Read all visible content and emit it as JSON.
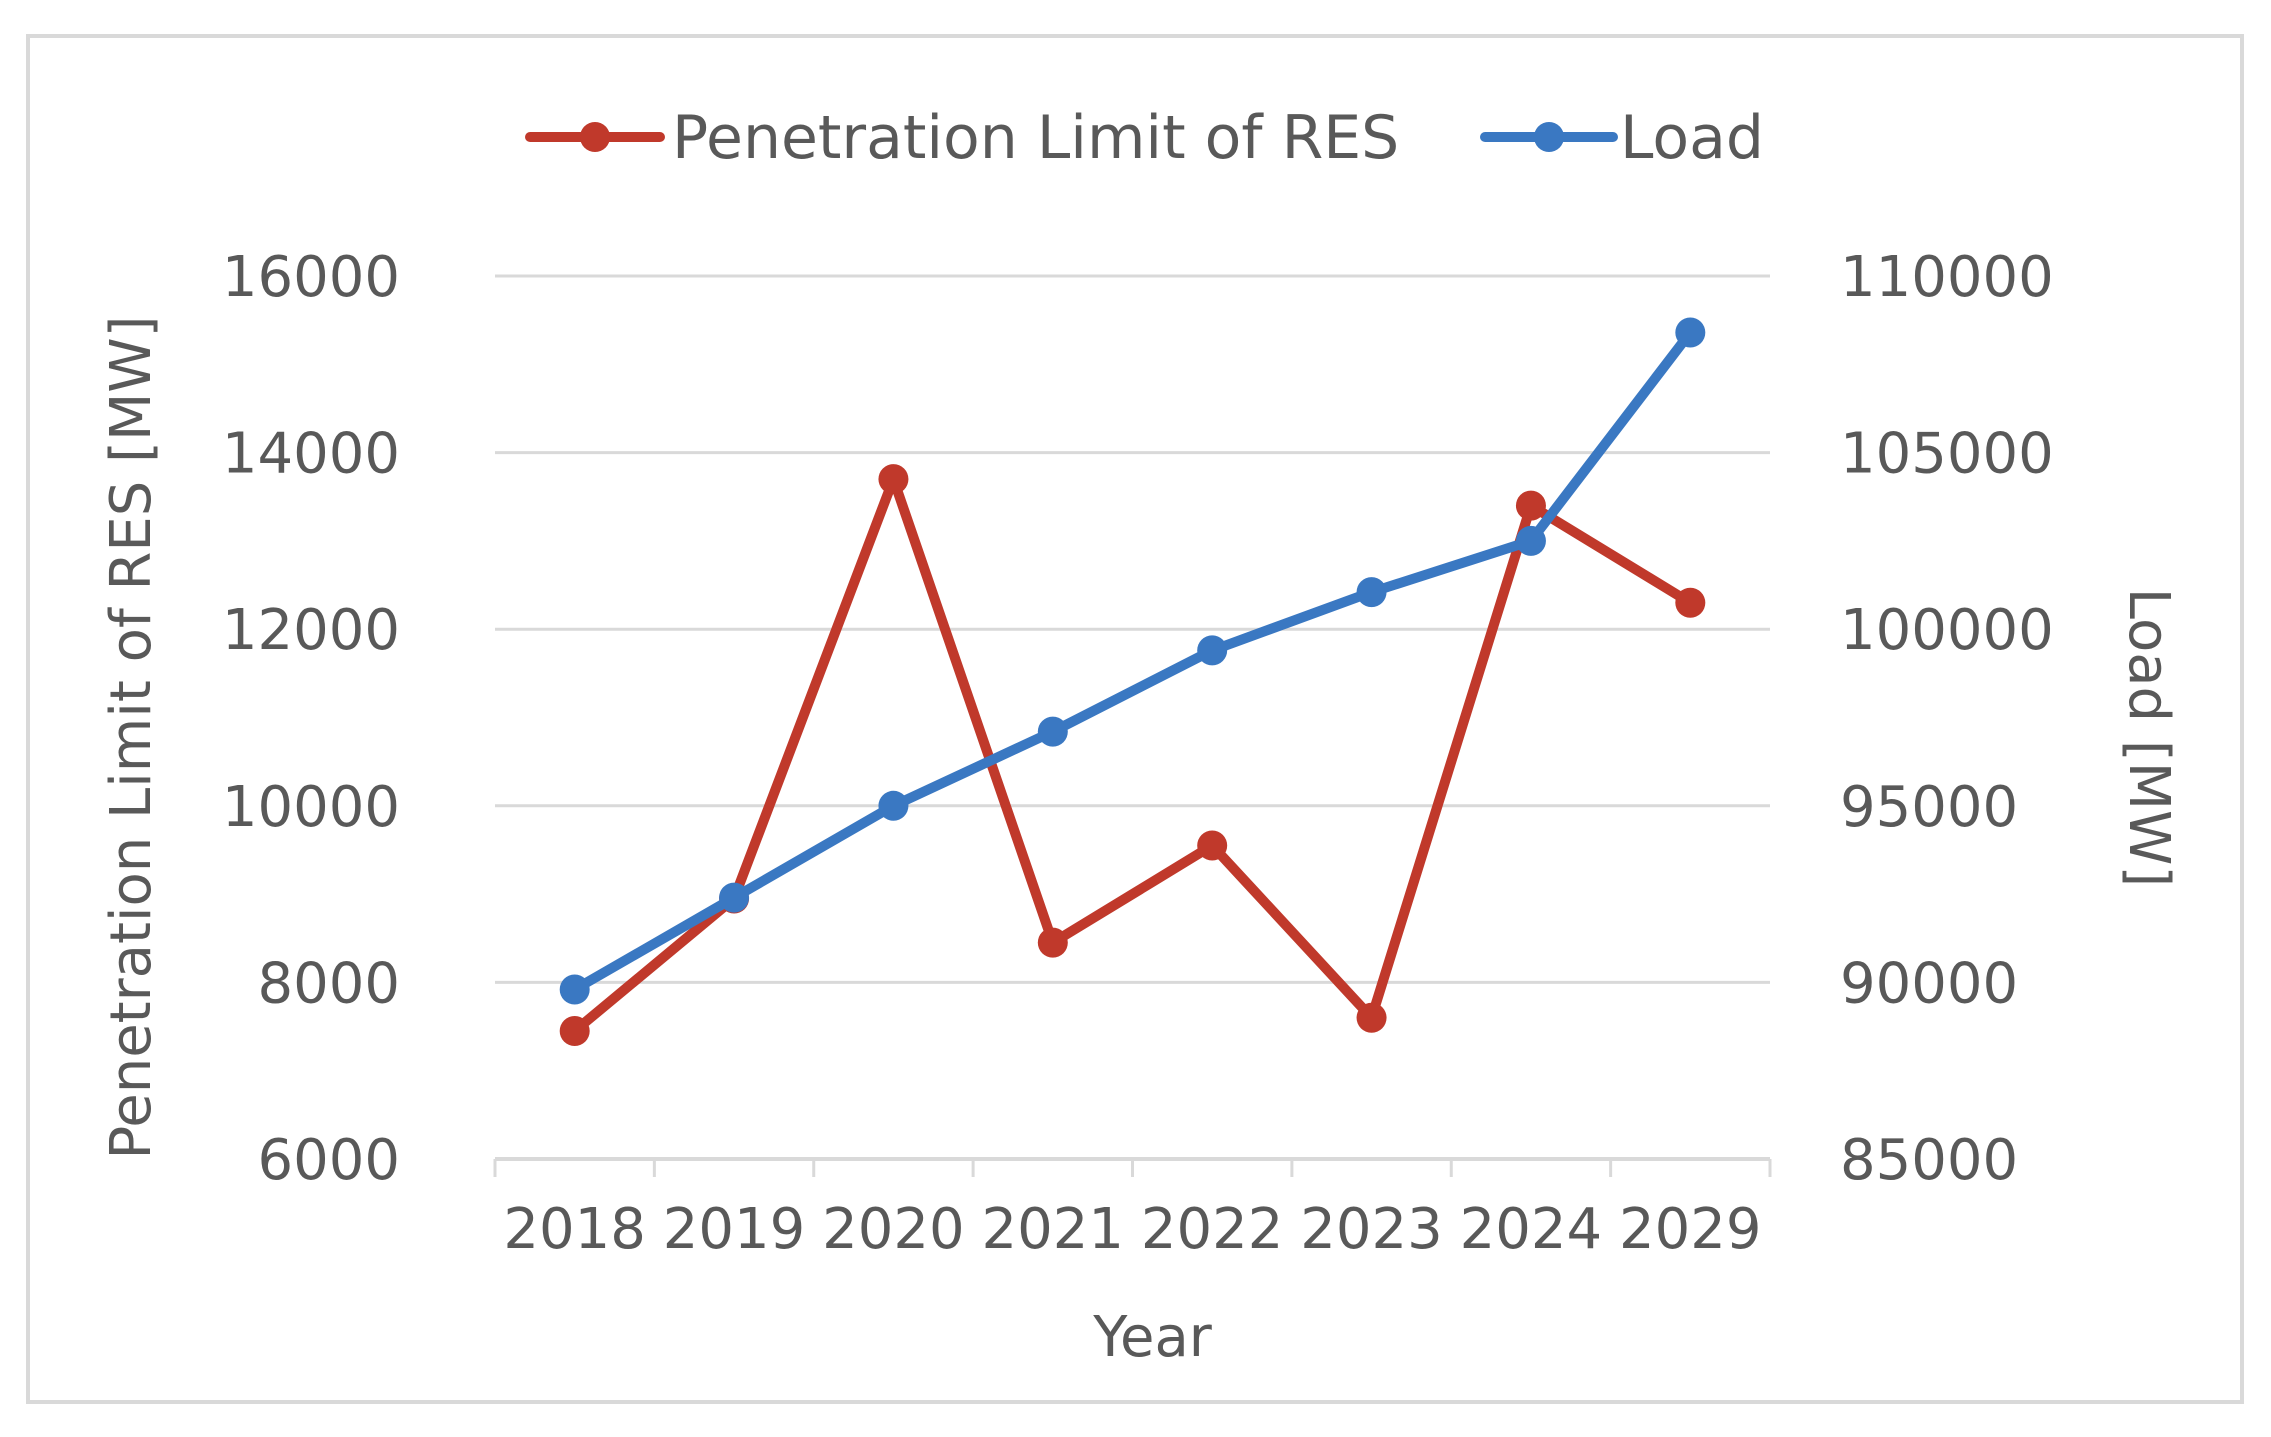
{
  "chart_data": {
    "type": "line",
    "title": "",
    "categories": [
      "2018",
      "2019",
      "2020",
      "2021",
      "2022",
      "2023",
      "2024",
      "2029"
    ],
    "xlabel": "Year",
    "ylabel": "Penetration Limit of RES [MW]",
    "y2label": "Load [MW]",
    "ylim": [
      6000,
      16000
    ],
    "y2lim": [
      85000,
      110000
    ],
    "yticks": [
      "6000",
      "8000",
      "10000",
      "12000",
      "14000",
      "16000"
    ],
    "y2ticks": [
      "85000",
      "90000",
      "95000",
      "100000",
      "105000",
      "110000"
    ],
    "grid": true,
    "legend_position": "top-center",
    "series": [
      {
        "name": "Penetration Limit of RES",
        "axis": "left",
        "color": "#c0392b",
        "values": [
          7450,
          8950,
          13700,
          8450,
          9550,
          7600,
          13400,
          12300
        ]
      },
      {
        "name": "Load",
        "axis": "right",
        "color": "#3a78c2",
        "values": [
          89800,
          92400,
          95000,
          97100,
          99400,
          101050,
          102500,
          108400
        ]
      }
    ]
  }
}
